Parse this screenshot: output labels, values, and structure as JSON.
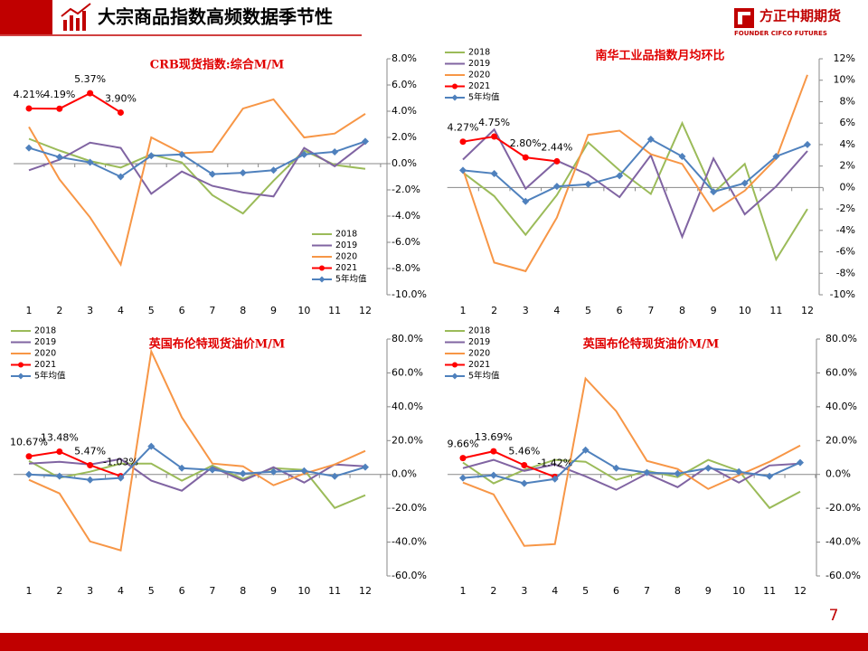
{
  "header": {
    "title": "大宗商品指数高频数据季节性",
    "logo_name": "方正中期期货",
    "logo_sub": "FOUNDER CIFCO FUTURES"
  },
  "page_number": "7",
  "chart_data": [
    {
      "type": "line",
      "title": "CRB现货指数:综合M/M",
      "categories": [
        "1",
        "2",
        "3",
        "4",
        "5",
        "6",
        "7",
        "8",
        "9",
        "10",
        "11",
        "12"
      ],
      "ylim": [
        -10,
        8
      ],
      "yticks": [
        {
          "value": -10,
          "label": "-10.0%"
        },
        {
          "value": -8,
          "label": "-8.0%"
        },
        {
          "value": -6,
          "label": "-6.0%"
        },
        {
          "value": -4,
          "label": "-4.0%"
        },
        {
          "value": -2,
          "label": "-2.0%"
        },
        {
          "value": 0,
          "label": "0.0%"
        },
        {
          "value": 2,
          "label": "2.0%"
        },
        {
          "value": 4,
          "label": "4.0%"
        },
        {
          "value": 6,
          "label": "6.0%"
        },
        {
          "value": 8,
          "label": "8.0%"
        }
      ],
      "legend": "lower right",
      "grid": false,
      "series": [
        {
          "name": "2018",
          "color": "#9bbb59",
          "values": [
            1.9,
            1.0,
            0.2,
            -0.3,
            0.7,
            0.1,
            -2.4,
            -3.8,
            -1.3,
            1.0,
            -0.1,
            -0.4
          ]
        },
        {
          "name": "2019",
          "color": "#8064a2",
          "values": [
            -0.5,
            0.3,
            1.6,
            1.2,
            -2.3,
            -0.6,
            -1.7,
            -2.2,
            -2.5,
            1.2,
            -0.2,
            1.6
          ]
        },
        {
          "name": "2020",
          "color": "#f79646",
          "values": [
            2.8,
            -1.2,
            -4.1,
            -7.7,
            2.0,
            0.8,
            0.9,
            4.2,
            4.9,
            2.0,
            2.3,
            3.8
          ]
        },
        {
          "name": "2021",
          "color": "#ff0000",
          "marker": "circle",
          "values": [
            4.21,
            4.19,
            5.37,
            3.9,
            null,
            null,
            null,
            null,
            null,
            null,
            null,
            null
          ],
          "value_labels": [
            "4.21%",
            "4.19%",
            "5.37%",
            "3.90%",
            null,
            null,
            null,
            null,
            null,
            null,
            null,
            null
          ]
        },
        {
          "name": "5年均值",
          "color": "#4f81bd",
          "marker": "diamond",
          "values": [
            1.2,
            0.5,
            0.1,
            -1.0,
            0.6,
            0.7,
            -0.8,
            -0.7,
            -0.5,
            0.7,
            0.9,
            1.7
          ]
        }
      ]
    },
    {
      "type": "line",
      "title": "南华工业品指数月均环比",
      "categories": [
        "1",
        "2",
        "3",
        "4",
        "5",
        "6",
        "7",
        "8",
        "9",
        "10",
        "11",
        "12"
      ],
      "ylim": [
        -10,
        12
      ],
      "yticks": [
        {
          "value": -10,
          "label": "-10%"
        },
        {
          "value": -8,
          "label": "-8%"
        },
        {
          "value": -6,
          "label": "-6%"
        },
        {
          "value": -4,
          "label": "-4%"
        },
        {
          "value": -2,
          "label": "-2%"
        },
        {
          "value": 0,
          "label": "0%"
        },
        {
          "value": 2,
          "label": "2%"
        },
        {
          "value": 4,
          "label": "4%"
        },
        {
          "value": 6,
          "label": "6%"
        },
        {
          "value": 8,
          "label": "8%"
        },
        {
          "value": 10,
          "label": "10%"
        },
        {
          "value": 12,
          "label": "12%"
        }
      ],
      "legend": "upper left",
      "grid": false,
      "series": [
        {
          "name": "2018",
          "color": "#9bbb59",
          "values": [
            1.4,
            -0.8,
            -4.4,
            -0.7,
            4.2,
            1.6,
            -0.6,
            6.0,
            -0.5,
            2.2,
            -6.7,
            -2.0
          ]
        },
        {
          "name": "2019",
          "color": "#8064a2",
          "values": [
            2.6,
            5.4,
            -0.1,
            2.5,
            1.2,
            -0.9,
            3.0,
            -4.6,
            2.7,
            -2.5,
            0.1,
            3.4
          ]
        },
        {
          "name": "2020",
          "color": "#f79646",
          "values": [
            1.7,
            -7.0,
            -7.8,
            -2.8,
            4.9,
            5.3,
            3.1,
            2.2,
            -2.2,
            -0.3,
            2.7,
            10.5
          ]
        },
        {
          "name": "2021",
          "color": "#ff0000",
          "marker": "circle",
          "values": [
            4.27,
            4.75,
            2.8,
            2.44,
            null,
            null,
            null,
            null,
            null,
            null,
            null,
            null
          ],
          "value_labels": [
            "4.27%",
            "4.75%",
            "2.80%",
            "2.44%",
            null,
            null,
            null,
            null,
            null,
            null,
            null,
            null
          ]
        },
        {
          "name": "5年均值",
          "color": "#4f81bd",
          "marker": "diamond",
          "values": [
            1.6,
            1.3,
            -1.3,
            0.1,
            0.3,
            1.1,
            4.5,
            2.9,
            -0.4,
            0.4,
            2.9,
            4.0
          ]
        }
      ]
    },
    {
      "type": "line",
      "title": "英国布伦特现货油价M/M",
      "categories": [
        "1",
        "2",
        "3",
        "4",
        "5",
        "6",
        "7",
        "8",
        "9",
        "10",
        "11",
        "12"
      ],
      "ylim": [
        -60,
        80
      ],
      "yticks": [
        {
          "value": -60,
          "label": "-60.0%"
        },
        {
          "value": -40,
          "label": "-40.0%"
        },
        {
          "value": -20,
          "label": "-20.0%"
        },
        {
          "value": 0,
          "label": "0.0%"
        },
        {
          "value": 20,
          "label": "20.0%"
        },
        {
          "value": 40,
          "label": "40.0%"
        },
        {
          "value": 60,
          "label": "60.0%"
        },
        {
          "value": 80,
          "label": "80.0%"
        }
      ],
      "legend": "upper left",
      "grid": false,
      "series": [
        {
          "name": "2018",
          "color": "#9bbb59",
          "values": [
            8.0,
            -2.0,
            1.6,
            6.4,
            6.4,
            -3.7,
            5.3,
            -2.7,
            3.7,
            2.7,
            -19.8,
            -12.3
          ]
        },
        {
          "name": "2019",
          "color": "#8064a2",
          "values": [
            6.4,
            7.5,
            5.9,
            9.1,
            -3.7,
            -9.6,
            4.3,
            -3.7,
            4.3,
            -4.8,
            5.9,
            4.8
          ]
        },
        {
          "name": "2020",
          "color": "#f79646",
          "values": [
            -3.2,
            -11.2,
            -39.6,
            -44.9,
            72.7,
            33.7,
            6.4,
            4.8,
            -6.4,
            0.5,
            5.9,
            13.9
          ]
        },
        {
          "name": "2021",
          "color": "#ff0000",
          "marker": "circle",
          "values": [
            10.67,
            13.48,
            5.47,
            -1.03,
            null,
            null,
            null,
            null,
            null,
            null,
            null,
            null
          ],
          "value_labels": [
            "10.67%",
            "13.48%",
            "5.47%",
            "-1.03%",
            null,
            null,
            null,
            null,
            null,
            null,
            null,
            null
          ]
        },
        {
          "name": "5年均值",
          "color": "#4f81bd",
          "marker": "diamond",
          "values": [
            0,
            -1.0,
            -3.2,
            -2.1,
            16.6,
            3.7,
            2.7,
            0.5,
            1.6,
            2.1,
            -1.1,
            4.3
          ]
        }
      ]
    },
    {
      "type": "line",
      "title": "英国布伦特现货油价M/M",
      "categories": [
        "1",
        "2",
        "3",
        "4",
        "5",
        "6",
        "7",
        "8",
        "9",
        "10",
        "11",
        "12"
      ],
      "ylim": [
        -60,
        80
      ],
      "yticks": [
        {
          "value": -60,
          "label": "-60.0%"
        },
        {
          "value": -40,
          "label": "-40.0%"
        },
        {
          "value": -20,
          "label": "-20.0%"
        },
        {
          "value": 0,
          "label": "0.0%"
        },
        {
          "value": 20,
          "label": "20.0%"
        },
        {
          "value": 40,
          "label": "40.0%"
        },
        {
          "value": 60,
          "label": "60.0%"
        },
        {
          "value": 80,
          "label": "80.0%"
        }
      ],
      "legend": "upper left",
      "grid": false,
      "series": [
        {
          "name": "2018",
          "color": "#9bbb59",
          "values": [
            7.0,
            -5.3,
            2.7,
            8.6,
            7.5,
            -3.2,
            2.1,
            -1.6,
            8.6,
            2.1,
            -19.8,
            -10.2
          ]
        },
        {
          "name": "2019",
          "color": "#8064a2",
          "values": [
            3.7,
            8.6,
            2.1,
            5.9,
            -1.1,
            -9.1,
            0.5,
            -7.5,
            4.8,
            -4.8,
            5.3,
            6.4
          ]
        },
        {
          "name": "2020",
          "color": "#f79646",
          "values": [
            -4.8,
            -11.8,
            -42.2,
            -41.2,
            56.7,
            37.4,
            8.0,
            3.2,
            -8.6,
            -0.5,
            7.5,
            17.1
          ]
        },
        {
          "name": "2021",
          "color": "#ff0000",
          "marker": "circle",
          "values": [
            9.66,
            13.69,
            5.46,
            -1.42,
            null,
            null,
            null,
            null,
            null,
            null,
            null,
            null
          ],
          "value_labels": [
            "9.66%",
            "13.69%",
            "5.46%",
            "-1.42%",
            null,
            null,
            null,
            null,
            null,
            null,
            null,
            null
          ]
        },
        {
          "name": "5年均值",
          "color": "#4f81bd",
          "marker": "diamond",
          "values": [
            -2.1,
            -0.5,
            -5.3,
            -2.7,
            14.4,
            3.7,
            1.1,
            0.5,
            3.7,
            1.6,
            -1.1,
            7.0
          ]
        }
      ]
    }
  ]
}
